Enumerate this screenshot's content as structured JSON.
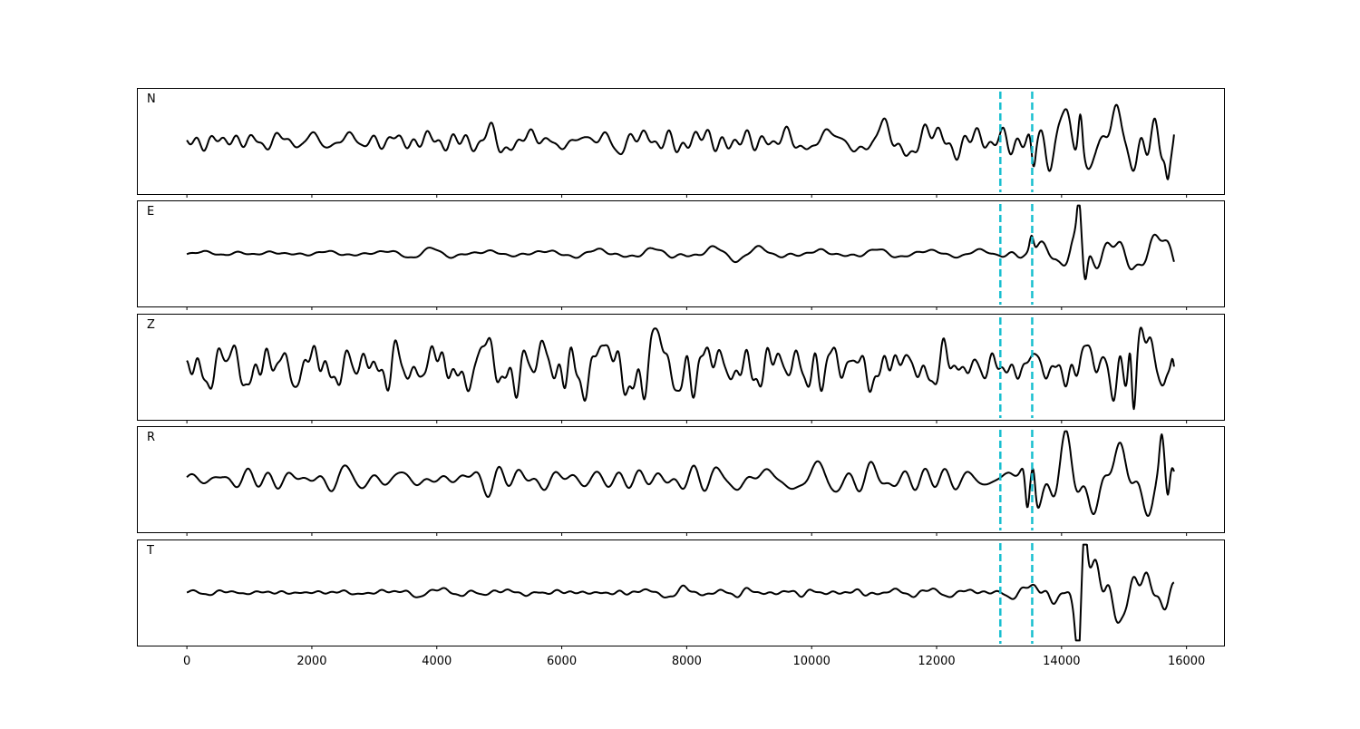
{
  "chart_data": {
    "type": "line",
    "layout": "stacked-subplots-shared-x",
    "xlim": [
      -800,
      16600
    ],
    "x_ticks": [
      0,
      2000,
      4000,
      6000,
      8000,
      10000,
      12000,
      14000,
      16000
    ],
    "x_tick_labels": [
      "0",
      "2000",
      "4000",
      "6000",
      "8000",
      "10000",
      "12000",
      "14000",
      "16000"
    ],
    "x_range": [
      0,
      15800
    ],
    "grid": false,
    "line_color": "#000000",
    "marker_color": "#17becf",
    "markers": [
      13020,
      13530
    ],
    "panels": [
      {
        "label": "N",
        "envelope": [
          [
            0,
            0.2
          ],
          [
            5000,
            0.25
          ],
          [
            7500,
            0.3
          ],
          [
            12500,
            0.3
          ],
          [
            13000,
            0.28
          ],
          [
            13500,
            0.6
          ],
          [
            13900,
            0.55
          ],
          [
            14300,
            0.95
          ],
          [
            15200,
            0.85
          ],
          [
            15800,
            0.85
          ]
        ],
        "events": [
          {
            "x": 13550,
            "amp": -0.55
          },
          {
            "x": 14300,
            "amp": 0.75
          },
          {
            "x": 15700,
            "amp": -0.6
          }
        ]
      },
      {
        "label": "E",
        "envelope": [
          [
            0,
            0.08
          ],
          [
            5000,
            0.1
          ],
          [
            8000,
            0.15
          ],
          [
            12500,
            0.1
          ],
          [
            13000,
            0.1
          ],
          [
            13500,
            0.35
          ],
          [
            13900,
            0.25
          ],
          [
            14300,
            0.8
          ],
          [
            15000,
            0.55
          ],
          [
            15800,
            0.5
          ]
        ],
        "events": [
          {
            "x": 13520,
            "amp": 0.35
          },
          {
            "x": 14280,
            "amp": 0.85
          },
          {
            "x": 14380,
            "amp": -0.55
          }
        ]
      },
      {
        "label": "Z",
        "envelope": [
          [
            0,
            0.5
          ],
          [
            2000,
            0.6
          ],
          [
            5000,
            0.6
          ],
          [
            6000,
            0.85
          ],
          [
            8000,
            0.75
          ],
          [
            10000,
            0.7
          ],
          [
            12500,
            0.5
          ],
          [
            13000,
            0.4
          ],
          [
            13500,
            0.4
          ],
          [
            14000,
            0.5
          ],
          [
            15000,
            0.85
          ],
          [
            15800,
            0.7
          ]
        ],
        "events": [
          {
            "x": 15100,
            "amp": 0.85
          },
          {
            "x": 15150,
            "amp": -0.7
          },
          {
            "x": 15780,
            "amp": 0.6
          }
        ]
      },
      {
        "label": "R",
        "envelope": [
          [
            0,
            0.2
          ],
          [
            5000,
            0.3
          ],
          [
            8000,
            0.3
          ],
          [
            12500,
            0.3
          ],
          [
            13000,
            0.3
          ],
          [
            13500,
            0.7
          ],
          [
            14000,
            0.6
          ],
          [
            14500,
            0.7
          ],
          [
            15800,
            0.85
          ]
        ],
        "events": [
          {
            "x": 13450,
            "amp": -0.85
          },
          {
            "x": 13550,
            "amp": 0.6
          },
          {
            "x": 15600,
            "amp": 0.6
          },
          {
            "x": 15700,
            "amp": -0.75
          }
        ]
      },
      {
        "label": "T",
        "envelope": [
          [
            0,
            0.06
          ],
          [
            6000,
            0.08
          ],
          [
            8000,
            0.1
          ],
          [
            11000,
            0.1
          ],
          [
            12500,
            0.08
          ],
          [
            13000,
            0.08
          ],
          [
            13500,
            0.15
          ],
          [
            14000,
            0.3
          ],
          [
            14300,
            0.95
          ],
          [
            14800,
            0.5
          ],
          [
            15800,
            0.35
          ]
        ],
        "events": [
          {
            "x": 14270,
            "amp": -0.8
          },
          {
            "x": 14370,
            "amp": 0.75
          }
        ]
      }
    ]
  }
}
